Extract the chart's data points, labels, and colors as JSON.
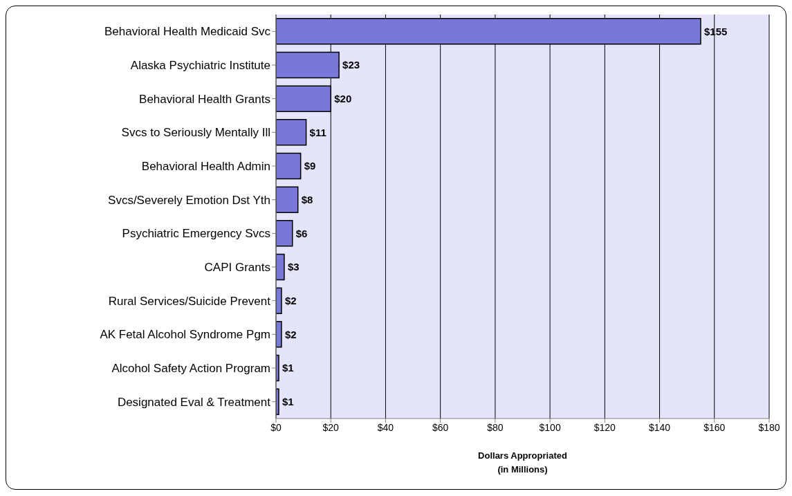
{
  "chart_data": {
    "type": "bar",
    "orientation": "horizontal",
    "categories": [
      "Behavioral Health Medicaid Svc",
      "Alaska Psychiatric Institute",
      "Behavioral Health Grants",
      "Svcs to Seriously Mentally Ill",
      "Behavioral Health Admin",
      "Svcs/Severely Emotion Dst Yth",
      "Psychiatric Emergency Svcs",
      "CAPI Grants",
      "Rural Services/Suicide Prevent",
      "AK Fetal Alcohol Syndrome Pgm",
      "Alcohol Safety Action Program",
      "Designated Eval & Treatment"
    ],
    "values": [
      155,
      23,
      20,
      11,
      9,
      8,
      6,
      3,
      2,
      2,
      1,
      1
    ],
    "value_labels": [
      "$155",
      "$23",
      "$20",
      "$11",
      "$9",
      "$8",
      "$6",
      "$3",
      "$2",
      "$2",
      "$1",
      "$1"
    ],
    "color": "#7878d8",
    "xlabel": "Dollars Appropriated\n(in Millions)",
    "xlim": [
      0,
      180
    ],
    "xticks": [
      {
        "value": 0,
        "label": "$0"
      },
      {
        "value": 20,
        "label": "$20"
      },
      {
        "value": 40,
        "label": "$40"
      },
      {
        "value": 60,
        "label": "$60"
      },
      {
        "value": 80,
        "label": "$80"
      },
      {
        "value": 100,
        "label": "$100"
      },
      {
        "value": 120,
        "label": "$120"
      },
      {
        "value": 140,
        "label": "$140"
      },
      {
        "value": 160,
        "label": "$160"
      },
      {
        "value": 180,
        "label": "$180"
      }
    ],
    "grid": "x"
  }
}
